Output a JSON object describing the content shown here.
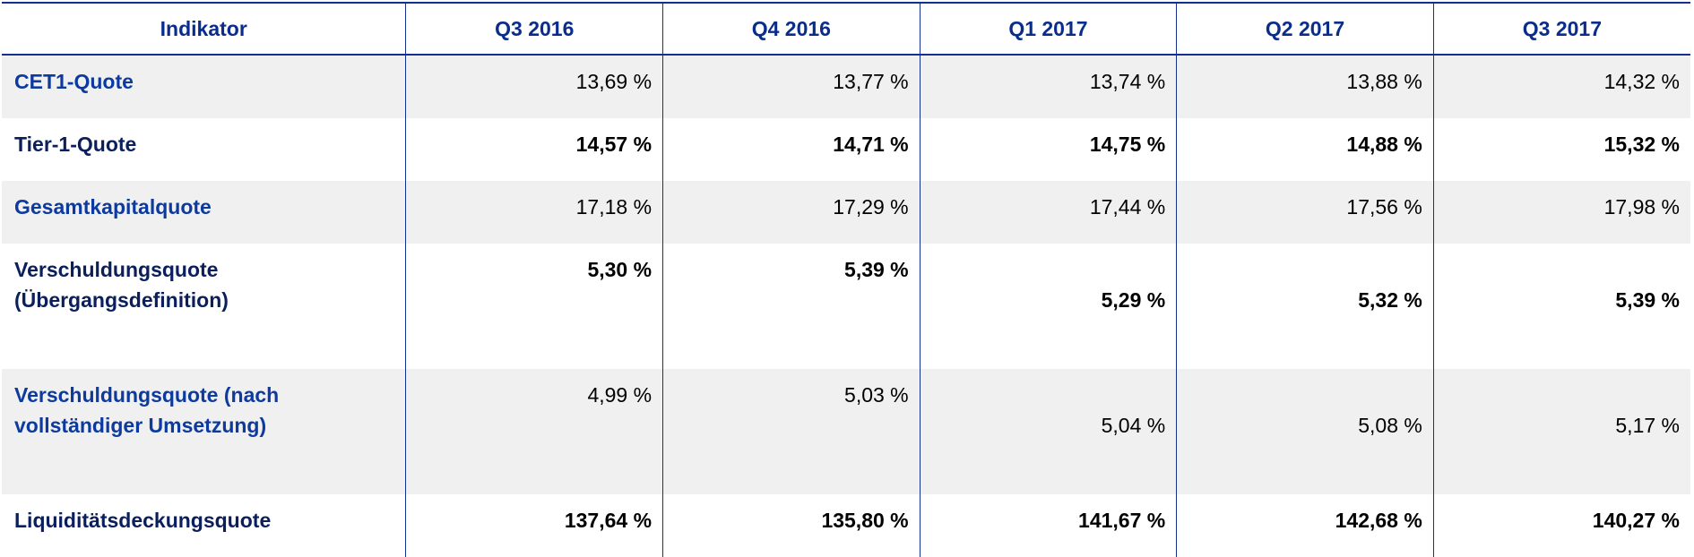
{
  "table": {
    "headers": [
      "Indikator",
      "Q3 2016",
      "Q4 2016",
      "Q1 2017",
      "Q2 2017",
      "Q3 2017"
    ],
    "rows": [
      {
        "label": "CET1-Quote",
        "values": [
          "13,69 %",
          "13,77 %",
          "13,74 %",
          "13,88 %",
          "14,32 %"
        ]
      },
      {
        "label": "Tier-1-Quote",
        "values": [
          "14,57 %",
          "14,71 %",
          "14,75 %",
          "14,88 %",
          "15,32 %"
        ]
      },
      {
        "label": "Gesamtkapitalquote",
        "values": [
          "17,18 %",
          "17,29 %",
          "17,44 %",
          "17,56 %",
          "17,98 %"
        ]
      },
      {
        "label_line1": "Verschuldungsquote",
        "label_line2": "(Übergangsdefinition)",
        "values": [
          "5,30 %",
          "5,39 %",
          "5,29 %",
          "5,32 %",
          "5,39 %"
        ]
      },
      {
        "label_line1": "Verschuldungsquote (nach",
        "label_line2": "vollständiger Umsetzung)",
        "values": [
          "4,99 %",
          "5,03 %",
          "5,04 %",
          "5,08 %",
          "5,17 %"
        ]
      },
      {
        "label": "Liquiditätsdeckungsquote",
        "values": [
          "137,64 %",
          "135,80 %",
          "141,67 %",
          "142,68 %",
          "140,27 %"
        ]
      }
    ]
  }
}
